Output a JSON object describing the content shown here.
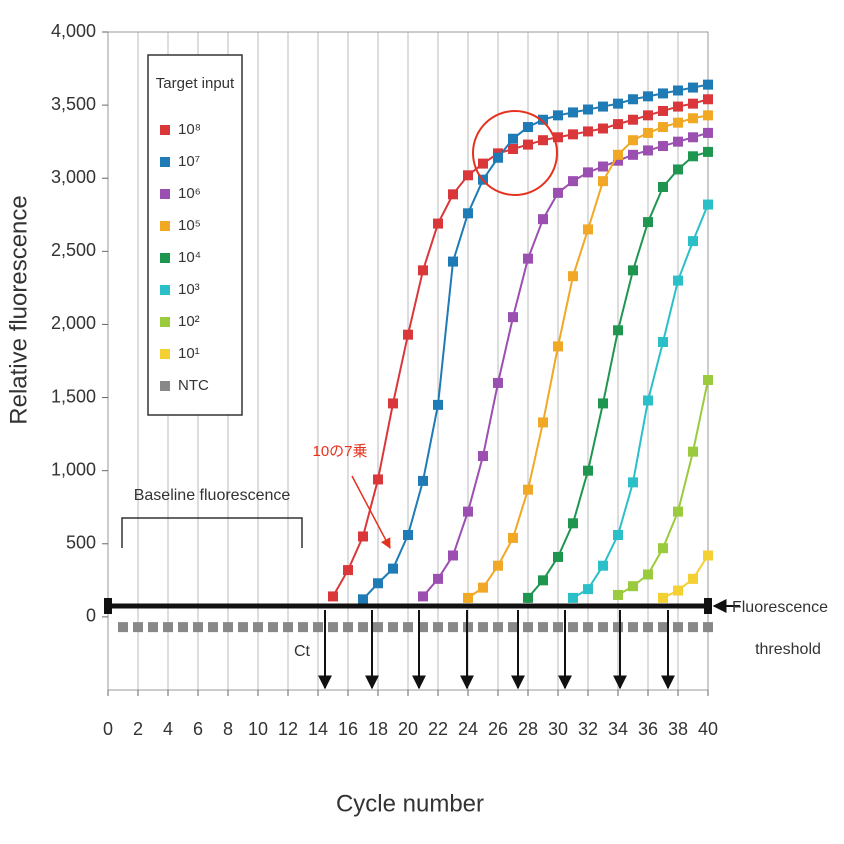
{
  "chart_data": {
    "type": "line",
    "xlabel": "Cycle number",
    "ylabel": "Relative fluorescence",
    "legend_title": "Target input",
    "baseline_label": "Baseline fluorescence",
    "ct_label": "Ct",
    "threshold_label": [
      "Fluorescence",
      "threshold"
    ],
    "annotation": "10の7乗",
    "grid": true,
    "xlim": [
      0,
      40
    ],
    "xticks": [
      0,
      2,
      4,
      6,
      8,
      10,
      12,
      14,
      16,
      18,
      20,
      22,
      24,
      26,
      28,
      30,
      32,
      34,
      36,
      38,
      40
    ],
    "ylim": [
      -500,
      4000
    ],
    "yticks": [
      0,
      500,
      {
        "value": 1000,
        "label": "1,000"
      },
      {
        "value": 1500,
        "label": "1,500"
      },
      {
        "value": 2000,
        "label": "2,000"
      },
      {
        "value": 2500,
        "label": "2,500"
      },
      {
        "value": 3000,
        "label": "3,000"
      },
      {
        "value": 3500,
        "label": "3,500"
      },
      {
        "value": 4000,
        "label": "4,000"
      }
    ],
    "x": [
      1,
      2,
      3,
      4,
      5,
      6,
      7,
      8,
      9,
      10,
      11,
      12,
      13,
      14,
      15,
      16,
      17,
      18,
      19,
      20,
      21,
      22,
      23,
      24,
      25,
      26,
      27,
      28,
      29,
      30,
      31,
      32,
      33,
      34,
      35,
      36,
      37,
      38,
      39,
      40
    ],
    "series": [
      {
        "name": "10⁸",
        "color": "#d9373a",
        "values": [
          null,
          null,
          null,
          null,
          null,
          null,
          null,
          null,
          null,
          null,
          null,
          null,
          null,
          null,
          140,
          320,
          550,
          940,
          1460,
          1930,
          2370,
          2690,
          2890,
          3020,
          3100,
          3170,
          3200,
          3230,
          3260,
          3280,
          3300,
          3320,
          3340,
          3370,
          3400,
          3430,
          3460,
          3490,
          3510,
          3540
        ]
      },
      {
        "name": "10⁷",
        "color": "#1f7bb5",
        "values": [
          null,
          null,
          null,
          null,
          null,
          null,
          null,
          null,
          null,
          null,
          null,
          null,
          null,
          null,
          null,
          null,
          120,
          230,
          330,
          560,
          930,
          1450,
          2430,
          2760,
          2990,
          3140,
          3270,
          3350,
          3400,
          3430,
          3450,
          3470,
          3490,
          3510,
          3540,
          3560,
          3580,
          3600,
          3620,
          3640
        ]
      },
      {
        "name": "10⁶",
        "color": "#9b4fb0",
        "values": [
          null,
          null,
          null,
          null,
          null,
          null,
          null,
          null,
          null,
          null,
          null,
          null,
          null,
          null,
          null,
          null,
          null,
          null,
          null,
          null,
          140,
          260,
          420,
          720,
          1100,
          1600,
          2050,
          2450,
          2720,
          2900,
          2980,
          3040,
          3080,
          3120,
          3160,
          3190,
          3220,
          3250,
          3280,
          3310
        ]
      },
      {
        "name": "10⁵",
        "color": "#f0a825",
        "values": [
          null,
          null,
          null,
          null,
          null,
          null,
          null,
          null,
          null,
          null,
          null,
          null,
          null,
          null,
          null,
          null,
          null,
          null,
          null,
          null,
          null,
          null,
          null,
          130,
          200,
          350,
          540,
          870,
          1330,
          1850,
          2330,
          2650,
          2980,
          3160,
          3260,
          3310,
          3350,
          3380,
          3410,
          3430
        ]
      },
      {
        "name": "10⁴",
        "color": "#1e9650",
        "values": [
          null,
          null,
          null,
          null,
          null,
          null,
          null,
          null,
          null,
          null,
          null,
          null,
          null,
          null,
          null,
          null,
          null,
          null,
          null,
          null,
          null,
          null,
          null,
          null,
          null,
          null,
          null,
          130,
          250,
          410,
          640,
          1000,
          1460,
          1960,
          2370,
          2700,
          2940,
          3060,
          3150,
          3180
        ]
      },
      {
        "name": "10³",
        "color": "#2bc0c8",
        "values": [
          null,
          null,
          null,
          null,
          null,
          null,
          null,
          null,
          null,
          null,
          null,
          null,
          null,
          null,
          null,
          null,
          null,
          null,
          null,
          null,
          null,
          null,
          null,
          null,
          null,
          null,
          null,
          null,
          null,
          null,
          130,
          190,
          350,
          560,
          920,
          1480,
          1880,
          2300,
          2570,
          2820
        ]
      },
      {
        "name": "10²",
        "color": "#9acb3c",
        "values": [
          null,
          null,
          null,
          null,
          null,
          null,
          null,
          null,
          null,
          null,
          null,
          null,
          null,
          null,
          null,
          null,
          null,
          null,
          null,
          null,
          null,
          null,
          null,
          null,
          null,
          null,
          null,
          null,
          null,
          null,
          null,
          null,
          null,
          150,
          210,
          290,
          470,
          720,
          1130,
          1620
        ]
      },
      {
        "name": "10¹",
        "color": "#f5d033",
        "values": [
          null,
          null,
          null,
          null,
          null,
          null,
          null,
          null,
          null,
          null,
          null,
          null,
          null,
          null,
          null,
          null,
          null,
          null,
          null,
          null,
          null,
          null,
          null,
          null,
          null,
          null,
          null,
          null,
          null,
          null,
          null,
          null,
          null,
          null,
          null,
          null,
          130,
          180,
          260,
          420
        ]
      },
      {
        "name": "NTC",
        "color": "#888888",
        "values": [
          -70,
          -70,
          -70,
          -70,
          -70,
          -70,
          -70,
          -70,
          -70,
          -70,
          -70,
          -70,
          -70,
          -70,
          -70,
          -70,
          -70,
          -70,
          -70,
          -70,
          -70,
          -70,
          -70,
          -70,
          -70,
          -70,
          -70,
          -70,
          -70,
          -70,
          -70,
          -70,
          -70,
          -70,
          -70,
          -70,
          -70,
          -70,
          -70,
          -70
        ]
      }
    ]
  }
}
